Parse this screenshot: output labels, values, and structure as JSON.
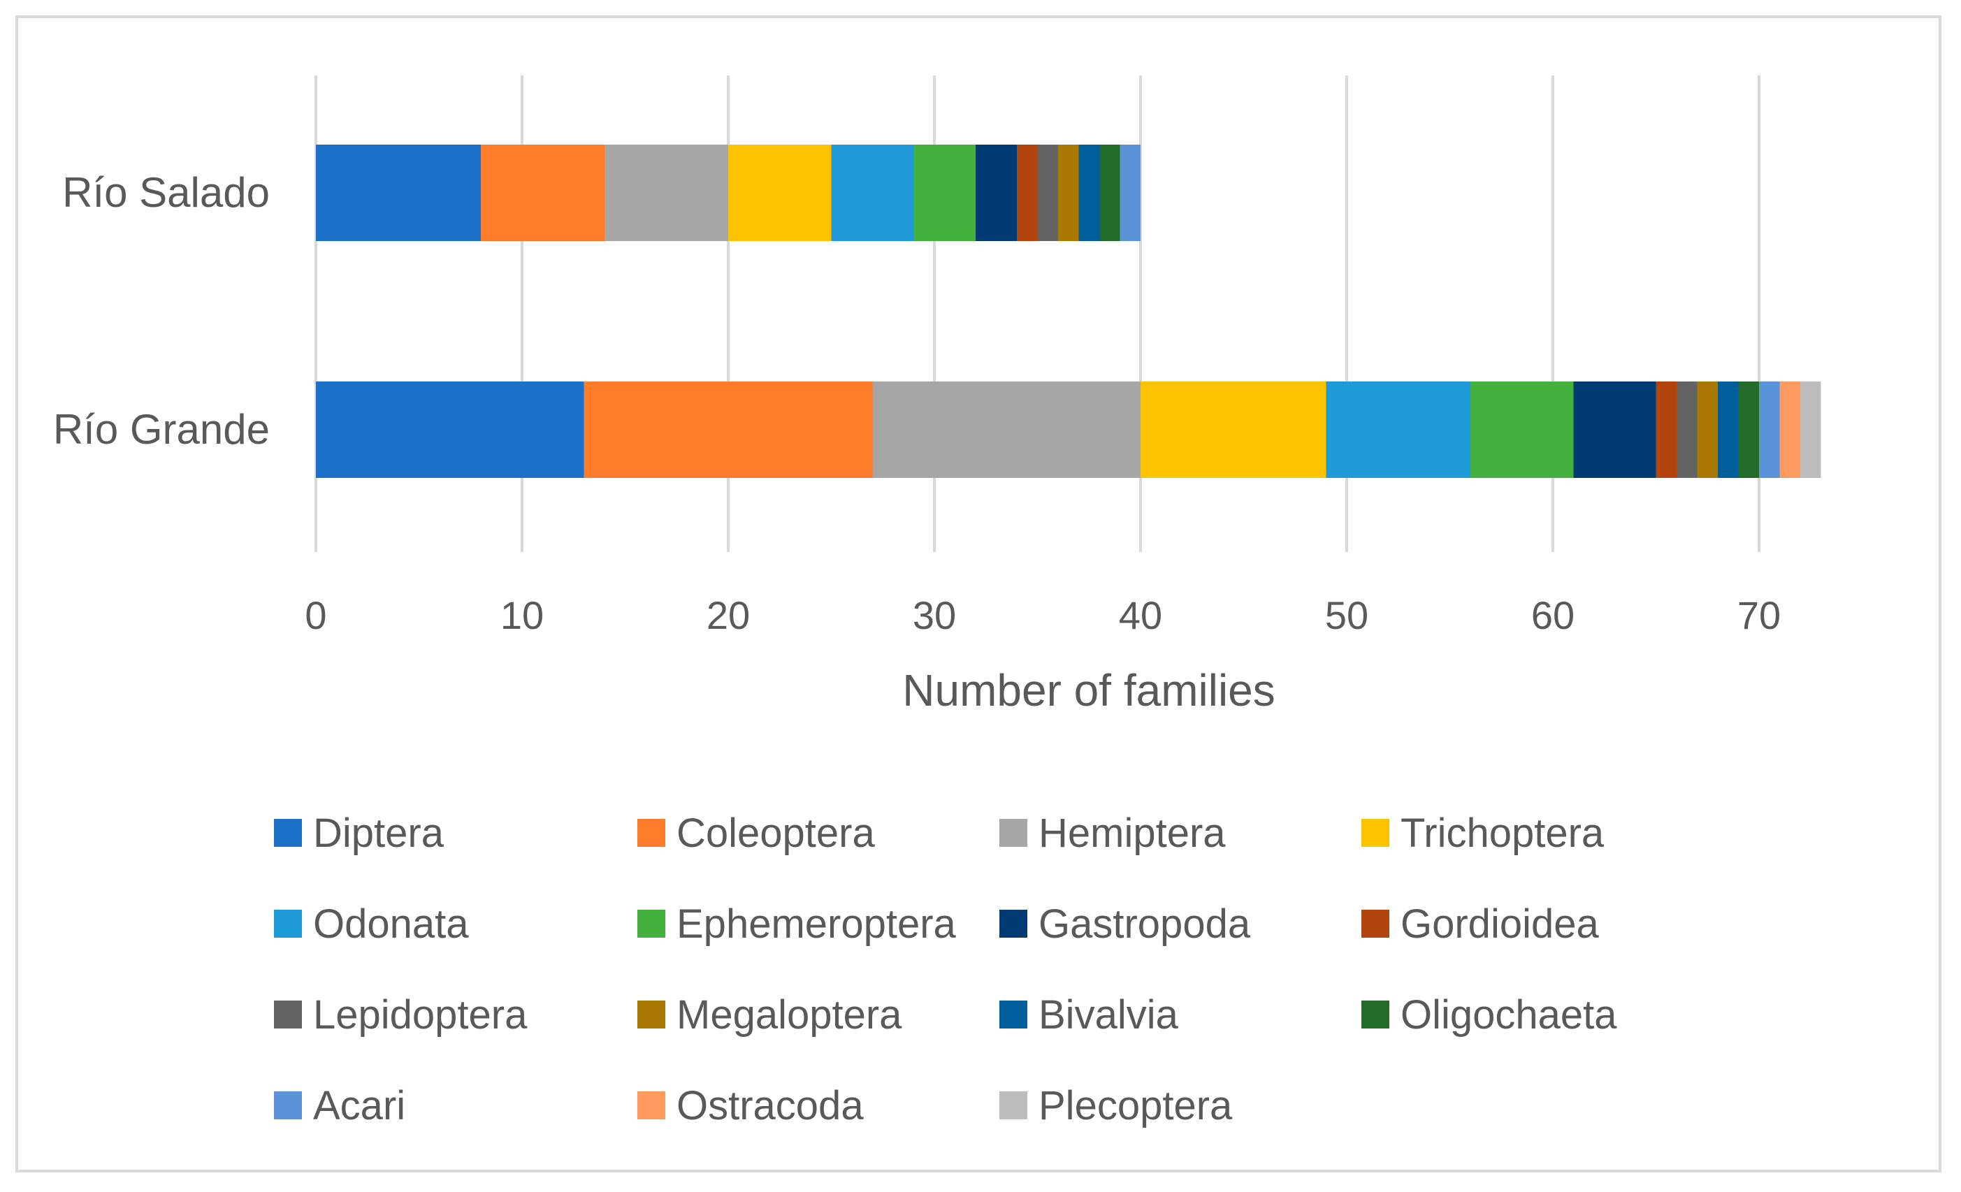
{
  "chart_data": {
    "type": "bar",
    "orientation": "horizontal",
    "stacked": true,
    "categories": [
      "Río Salado",
      "Río Grande"
    ],
    "xlabel": "Number of families",
    "xlim": [
      0,
      73
    ],
    "xticks": [
      0,
      10,
      20,
      30,
      40,
      50,
      60,
      70
    ],
    "grid": true,
    "legend_position": "bottom",
    "series": [
      {
        "name": "Diptera",
        "color": "#1b70c8",
        "values": [
          8,
          13
        ]
      },
      {
        "name": "Coleoptera",
        "color": "#fe7c2a",
        "values": [
          6,
          14
        ]
      },
      {
        "name": "Hemiptera",
        "color": "#a6a6a6",
        "values": [
          6,
          13
        ]
      },
      {
        "name": "Trichoptera",
        "color": "#fec300",
        "values": [
          5,
          9
        ]
      },
      {
        "name": "Odonata",
        "color": "#1e9ad9",
        "values": [
          4,
          7
        ]
      },
      {
        "name": "Ephemeroptera",
        "color": "#44b03e",
        "values": [
          3,
          5
        ]
      },
      {
        "name": "Gastropoda",
        "color": "#003c73",
        "values": [
          2,
          4
        ]
      },
      {
        "name": "Gordioidea",
        "color": "#b3440d",
        "values": [
          1,
          1
        ]
      },
      {
        "name": "Lepidoptera",
        "color": "#636363",
        "values": [
          1,
          1
        ]
      },
      {
        "name": "Megaloptera",
        "color": "#a87800",
        "values": [
          1,
          1
        ]
      },
      {
        "name": "Bivalvia",
        "color": "#005f9a",
        "values": [
          1,
          1
        ]
      },
      {
        "name": "Oligochaeta",
        "color": "#236b28",
        "values": [
          1,
          1
        ]
      },
      {
        "name": "Acari",
        "color": "#5a93d8",
        "values": [
          1,
          1
        ]
      },
      {
        "name": "Ostracoda",
        "color": "#fe9a5e",
        "values": [
          0,
          1
        ]
      },
      {
        "name": "Plecoptera",
        "color": "#bcbcbc",
        "values": [
          0,
          1
        ]
      }
    ]
  }
}
